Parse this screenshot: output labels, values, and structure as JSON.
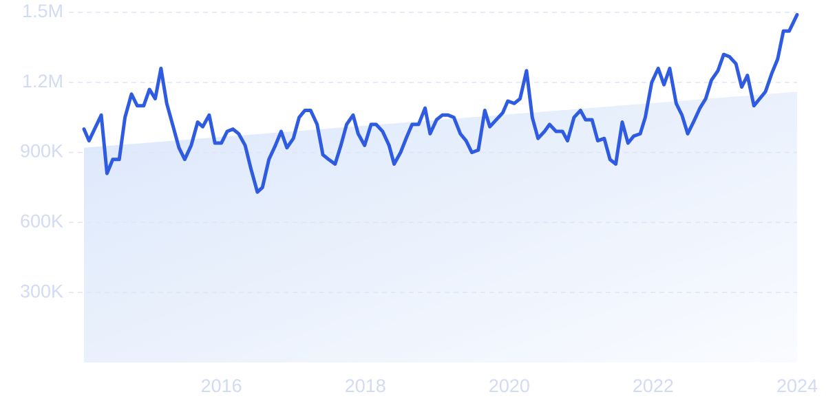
{
  "chart_data": {
    "type": "line",
    "xlim": [
      2014.09,
      2024.0
    ],
    "xticks": [
      2016,
      2018,
      2020,
      2022,
      2024
    ],
    "ylim": [
      0,
      1500000
    ],
    "yticks": [
      {
        "value": 300000,
        "label": "300K"
      },
      {
        "value": 600000,
        "label": "600K"
      },
      {
        "value": 900000,
        "label": "900K"
      },
      {
        "value": 1200000,
        "label": "1.2M"
      },
      {
        "value": 1500000,
        "label": "1.5M"
      }
    ],
    "grid": true,
    "series": [
      {
        "color": "#2f5be0",
        "style": "line",
        "x": [
          2014.09,
          2014.16,
          2014.33,
          2014.41,
          2014.49,
          2014.58,
          2014.66,
          2014.75,
          2014.83,
          2014.92,
          2015.0,
          2015.08,
          2015.16,
          2015.24,
          2015.33,
          2015.41,
          2015.49,
          2015.58,
          2015.67,
          2015.74,
          2015.83,
          2015.91,
          2016.0,
          2016.08,
          2016.16,
          2016.24,
          2016.33,
          2016.41,
          2016.5,
          2016.57,
          2016.66,
          2016.75,
          2016.83,
          2016.91,
          2017.0,
          2017.08,
          2017.16,
          2017.24,
          2017.33,
          2017.41,
          2017.49,
          2017.58,
          2017.66,
          2017.74,
          2017.83,
          2017.9,
          2017.99,
          2018.08,
          2018.15,
          2018.24,
          2018.33,
          2018.4,
          2018.49,
          2018.58,
          2018.65,
          2018.74,
          2018.83,
          2018.9,
          2018.99,
          2019.07,
          2019.15,
          2019.23,
          2019.32,
          2019.4,
          2019.48,
          2019.57,
          2019.66,
          2019.73,
          2019.82,
          2019.91,
          2019.98,
          2020.07,
          2020.15,
          2020.24,
          2020.32,
          2020.4,
          2020.49,
          2020.56,
          2020.65,
          2020.74,
          2020.81,
          2020.9,
          2020.99,
          2021.06,
          2021.15,
          2021.23,
          2021.32,
          2021.4,
          2021.48,
          2021.57,
          2021.65,
          2021.73,
          2021.82,
          2021.89,
          2021.98,
          2022.07,
          2022.15,
          2022.23,
          2022.32,
          2022.4,
          2022.48,
          2022.56,
          2022.65,
          2022.73,
          2022.81,
          2022.9,
          2022.98,
          2023.06,
          2023.15,
          2023.23,
          2023.31,
          2023.4,
          2023.48,
          2023.56,
          2023.65,
          2023.73,
          2023.81,
          2023.89,
          2024.0
        ],
        "values": [
          1000000,
          950000,
          1060000,
          810000,
          870000,
          870000,
          1050000,
          1150000,
          1100000,
          1100000,
          1170000,
          1130000,
          1260000,
          1110000,
          1010000,
          920000,
          870000,
          930000,
          1030000,
          1010000,
          1060000,
          940000,
          940000,
          990000,
          1000000,
          980000,
          930000,
          830000,
          730000,
          750000,
          870000,
          930000,
          990000,
          920000,
          960000,
          1050000,
          1080000,
          1080000,
          1020000,
          890000,
          870000,
          850000,
          930000,
          1020000,
          1060000,
          980000,
          930000,
          1020000,
          1020000,
          990000,
          930000,
          850000,
          900000,
          970000,
          1020000,
          1020000,
          1090000,
          980000,
          1040000,
          1060000,
          1060000,
          1050000,
          980000,
          950000,
          900000,
          910000,
          1080000,
          1010000,
          1040000,
          1070000,
          1120000,
          1110000,
          1130000,
          1250000,
          1050000,
          960000,
          990000,
          1020000,
          990000,
          990000,
          950000,
          1050000,
          1080000,
          1040000,
          1040000,
          950000,
          960000,
          870000,
          850000,
          1030000,
          940000,
          970000,
          980000,
          1050000,
          1200000,
          1260000,
          1190000,
          1260000,
          1110000,
          1060000,
          980000,
          1030000,
          1090000,
          1130000,
          1210000,
          1250000,
          1320000,
          1310000,
          1280000,
          1180000,
          1230000,
          1100000,
          1130000,
          1160000,
          1240000,
          1300000,
          1420000,
          1420000,
          1490000
        ]
      },
      {
        "color": "#dbe7fb",
        "style": "area",
        "x": [
          2014.09,
          2024.0
        ],
        "values": [
          920000,
          1160000
        ]
      }
    ]
  }
}
